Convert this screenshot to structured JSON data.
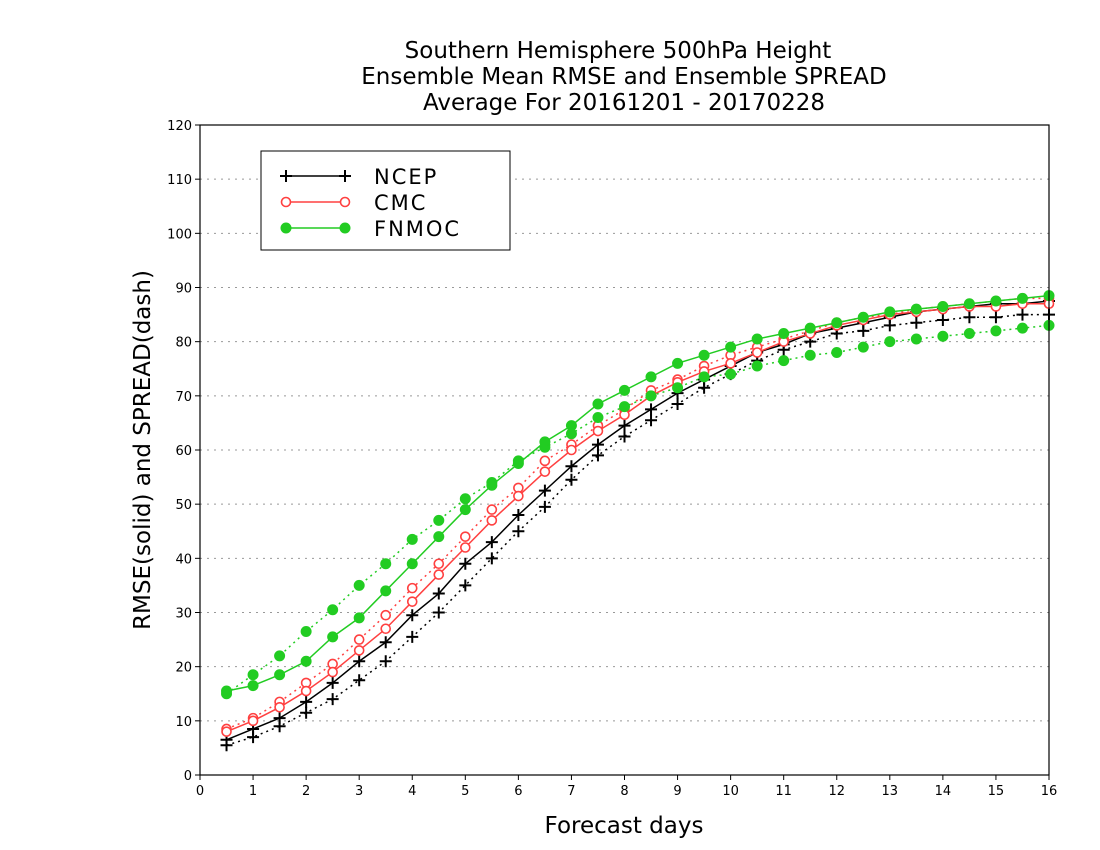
{
  "chart_data": {
    "type": "line",
    "title": [
      "Southern Hemisphere 500hPa Height",
      "Ensemble Mean RMSE and Ensemble SPREAD",
      "Average For 20161201 - 20170228"
    ],
    "xlabel": "Forecast days",
    "ylabel": "RMSE(solid) and SPREAD(dash)",
    "xlim": [
      0,
      16
    ],
    "ylim": [
      0,
      120
    ],
    "xticks": [
      0,
      1,
      2,
      3,
      4,
      5,
      6,
      7,
      8,
      9,
      10,
      11,
      12,
      13,
      14,
      15,
      16
    ],
    "yticks": [
      0,
      10,
      20,
      30,
      40,
      50,
      60,
      70,
      80,
      90,
      100,
      110,
      120
    ],
    "grid": true,
    "legend_position": "top-left",
    "x": [
      0.5,
      1,
      1.5,
      2,
      2.5,
      3,
      3.5,
      4,
      4.5,
      5,
      5.5,
      6,
      6.5,
      7,
      7.5,
      8,
      8.5,
      9,
      9.5,
      10,
      10.5,
      11,
      11.5,
      12,
      12.5,
      13,
      13.5,
      14,
      14.5,
      15,
      15.5,
      16
    ],
    "series": [
      {
        "name": "NCEP",
        "color": "#000000",
        "marker": "plus",
        "rmse": [
          6.5,
          8.5,
          10.5,
          13.5,
          17,
          21,
          24.5,
          29.5,
          33.5,
          39,
          43,
          48,
          52.5,
          57,
          61,
          64.5,
          67.5,
          70.5,
          73,
          75.5,
          78,
          79.5,
          81.5,
          82.5,
          83.5,
          84.5,
          85.5,
          86,
          86.5,
          87,
          87,
          87.5
        ],
        "spread": [
          5.5,
          7,
          9,
          11.5,
          14,
          17.5,
          21,
          25.5,
          30,
          35,
          40,
          45,
          49.5,
          54.5,
          59,
          62.5,
          65.5,
          68.5,
          71.5,
          74,
          76.5,
          78.5,
          80,
          81.5,
          82,
          83,
          83.5,
          84,
          84.5,
          84.5,
          85,
          85
        ]
      },
      {
        "name": "CMC",
        "color": "#ff4040",
        "marker": "open-circle",
        "rmse": [
          8,
          10,
          12.5,
          15.5,
          19,
          23,
          27,
          32,
          37,
          42,
          47,
          51.5,
          56,
          60,
          63.5,
          66.5,
          70,
          72.5,
          74.5,
          76,
          78,
          80,
          81.5,
          83,
          84,
          85,
          85.5,
          86,
          86.5,
          86.5,
          87,
          87
        ],
        "spread": [
          8.5,
          10.5,
          13.5,
          17,
          20.5,
          25,
          29.5,
          34.5,
          39,
          44,
          49,
          53,
          58,
          61,
          64.5,
          67.5,
          71,
          73,
          75.5,
          77.5,
          79,
          80.5,
          82,
          83.5,
          84.5,
          85,
          86,
          86.5,
          87,
          87.5,
          88,
          88
        ]
      },
      {
        "name": "FNMOC",
        "color": "#22cc22",
        "marker": "filled-circle",
        "rmse": [
          15.5,
          16.5,
          18.5,
          21,
          25.5,
          29,
          34,
          39,
          44,
          49,
          53.5,
          57.5,
          61.5,
          64.5,
          68.5,
          71,
          73.5,
          76,
          77.5,
          79,
          80.5,
          81.5,
          82.5,
          83.5,
          84.5,
          85.5,
          86,
          86.5,
          87,
          87.5,
          88,
          88.5
        ],
        "spread": [
          15,
          18.5,
          22,
          26.5,
          30.5,
          35,
          39,
          43.5,
          47,
          51,
          54,
          58,
          60.5,
          63,
          66,
          68,
          70,
          71.5,
          73.5,
          74,
          75.5,
          76.5,
          77.5,
          78,
          79,
          80,
          80.5,
          81,
          81.5,
          82,
          82.5,
          83
        ]
      }
    ]
  }
}
